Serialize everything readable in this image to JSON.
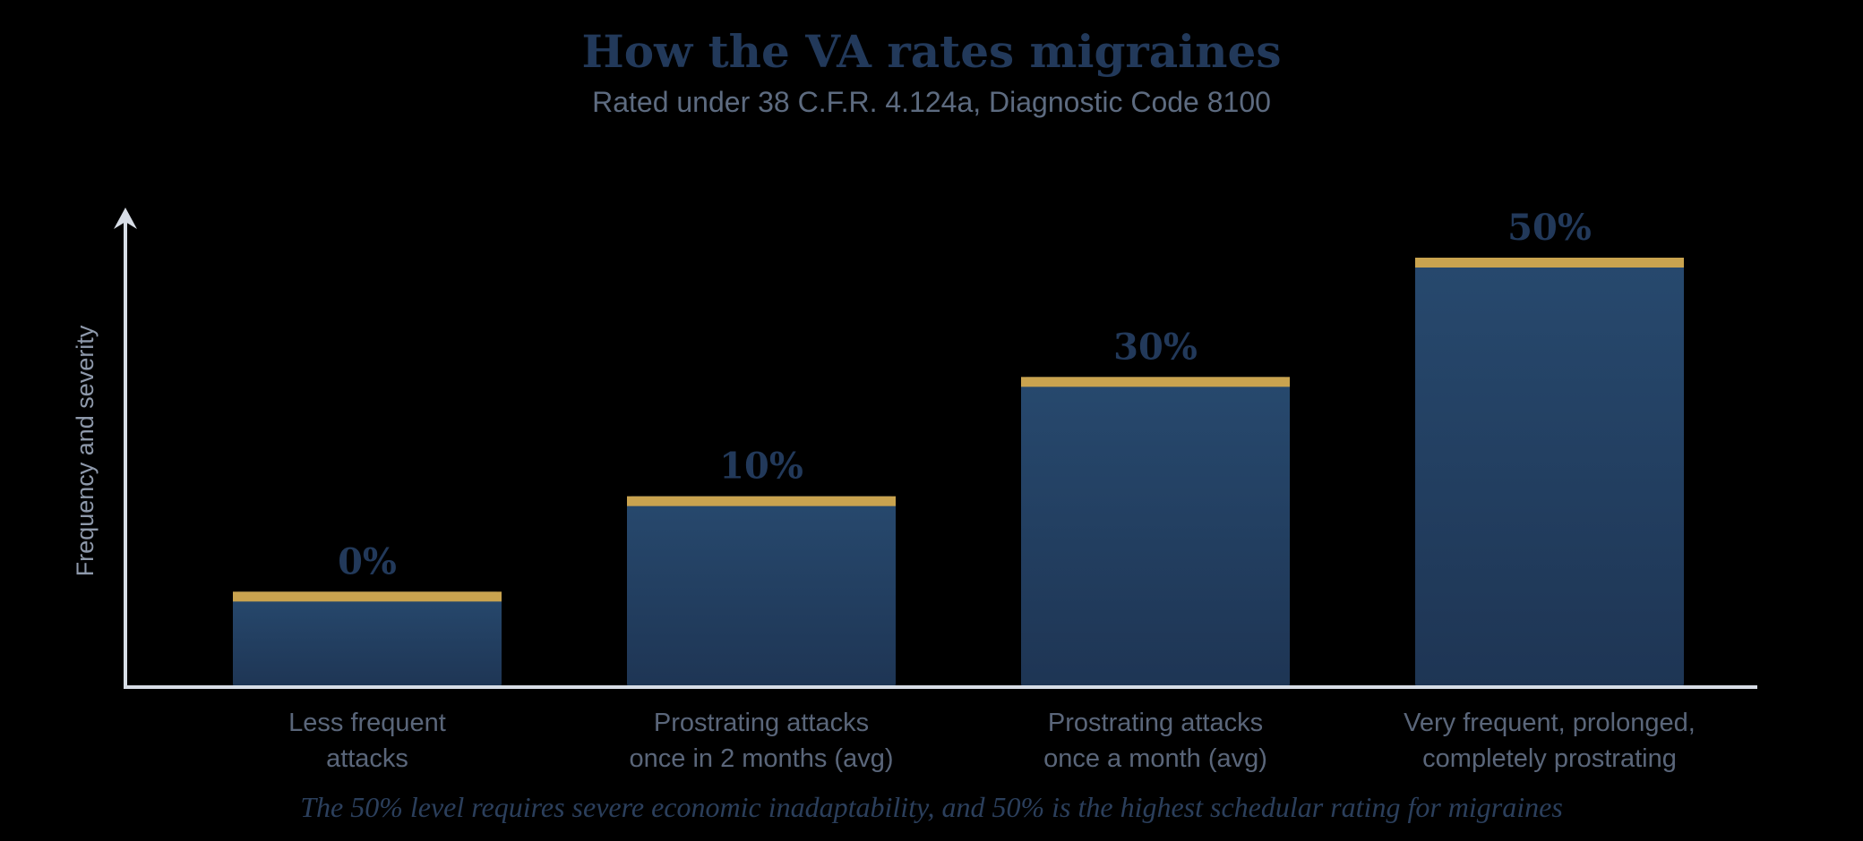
{
  "title": "How the VA rates migraines",
  "subtitle": "Rated under 38 C.F.R. 4.124a, Diagnostic Code 8100",
  "footnote": "The 50% level requires severe economic inadaptability, and 50% is the highest schedular rating for migraines",
  "colors": {
    "bar_top": "#27496e",
    "bar_bottom": "#1e3554",
    "bar_cap": "#c9a34f",
    "axis": "#d7dde6",
    "background": "#000000"
  },
  "chart_data": {
    "type": "bar",
    "categories": [
      [
        "Less frequent",
        "attacks"
      ],
      [
        "Prostrating attacks",
        "once in 2 months (avg)"
      ],
      [
        "Prostrating attacks",
        "once a month (avg)"
      ],
      [
        "Very frequent, prolonged,",
        "completely prostrating"
      ]
    ],
    "values": [
      0,
      10,
      30,
      50
    ],
    "data_labels": [
      "0%",
      "10%",
      "30%",
      "50%"
    ],
    "relative_heights": [
      0.2,
      0.4,
      0.65,
      0.9
    ],
    "xlabel": "",
    "ylabel": "Frequency and severity",
    "y_ticks": "none",
    "grid": false,
    "legend": "none"
  }
}
